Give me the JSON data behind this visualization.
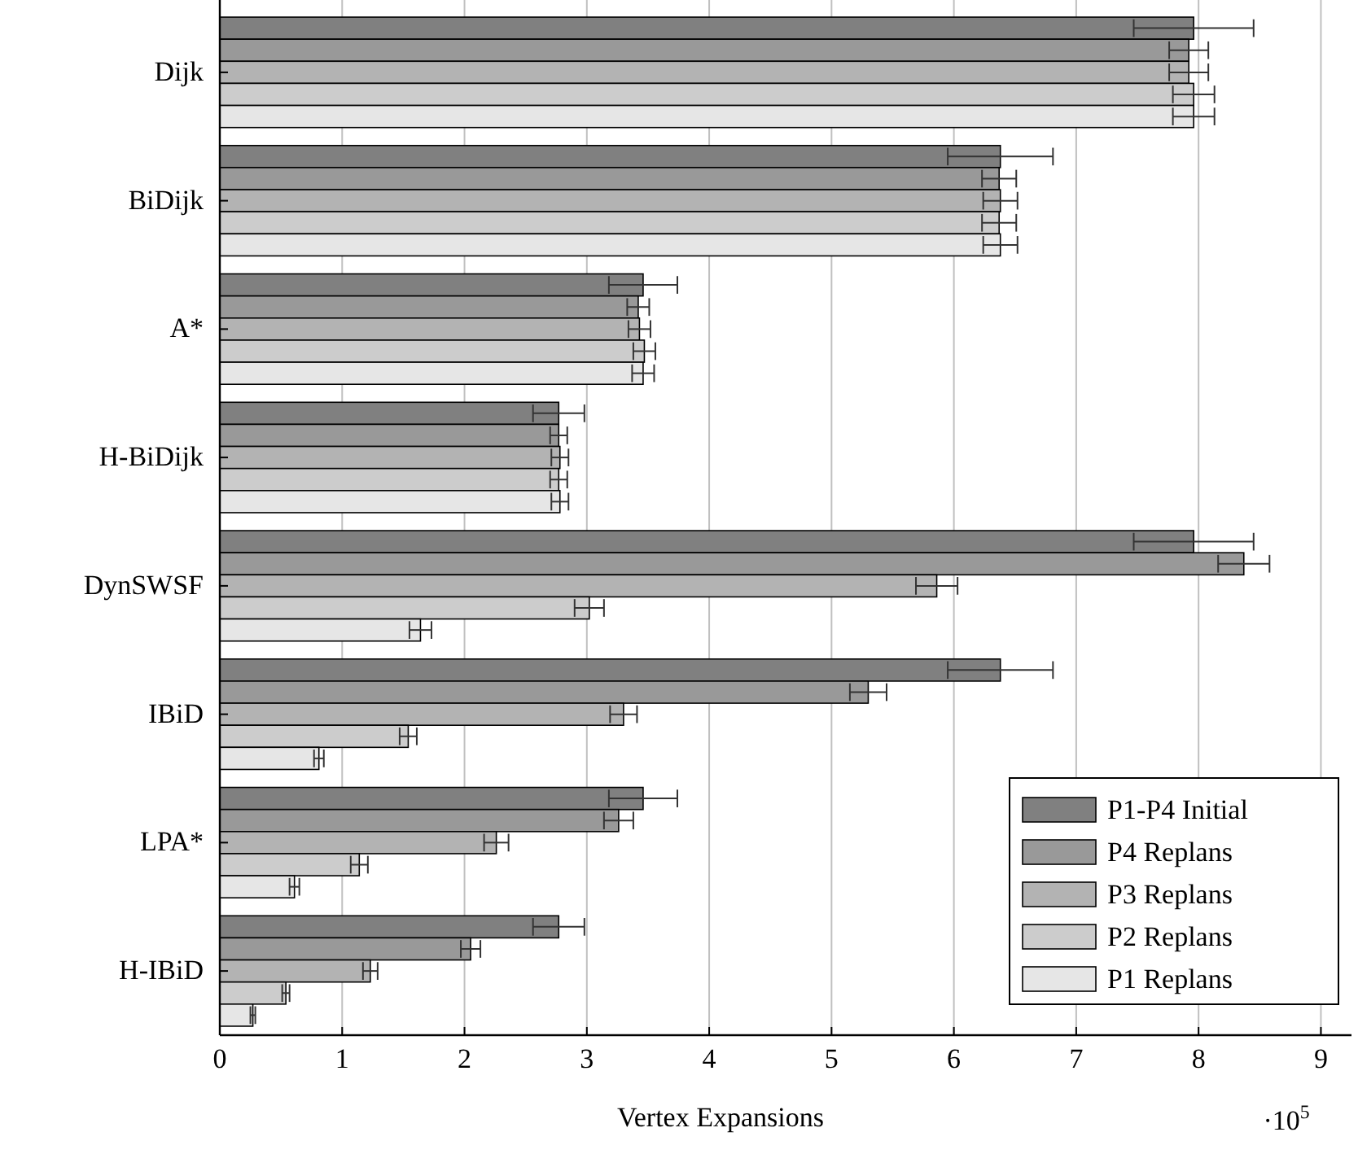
{
  "chart_data": {
    "type": "bar",
    "orientation": "horizontal",
    "xlabel": "Vertex Expansions",
    "annotations": [
      "·10$^{5}$"
    ],
    "categories": [
      "Dijk",
      "BiDijk",
      "A*",
      "H-BiDijk",
      "DynSWSF",
      "IBiD",
      "LPA*",
      "H-IBiD"
    ],
    "xlim": [
      0,
      9.25
    ],
    "xticks": [
      0,
      1,
      2,
      3,
      4,
      5,
      6,
      7,
      8,
      9
    ],
    "grid": "x",
    "legend": "bottom right",
    "series": [
      {
        "name": "P1-P4 Initial",
        "color": "#808080",
        "values": [
          7.96,
          6.38,
          3.46,
          2.77,
          7.96,
          6.38,
          3.46,
          2.77
        ],
        "errors": [
          0.49,
          0.43,
          0.28,
          0.21,
          0.49,
          0.43,
          0.28,
          0.21
        ]
      },
      {
        "name": "P4 Replans",
        "color": "#999999",
        "values": [
          7.92,
          6.37,
          3.42,
          2.77,
          8.37,
          5.3,
          3.26,
          2.05
        ],
        "errors": [
          0.16,
          0.14,
          0.09,
          0.07,
          0.21,
          0.15,
          0.12,
          0.08
        ]
      },
      {
        "name": "P3 Replans",
        "color": "#b3b3b3",
        "values": [
          7.92,
          6.38,
          3.43,
          2.78,
          5.86,
          3.3,
          2.26,
          1.23
        ],
        "errors": [
          0.16,
          0.14,
          0.09,
          0.07,
          0.17,
          0.11,
          0.1,
          0.06
        ]
      },
      {
        "name": "P2 Replans",
        "color": "#cccccc",
        "values": [
          7.96,
          6.37,
          3.47,
          2.77,
          3.02,
          1.54,
          1.14,
          0.54
        ],
        "errors": [
          0.17,
          0.14,
          0.09,
          0.07,
          0.12,
          0.07,
          0.07,
          0.03
        ]
      },
      {
        "name": "P1 Replans",
        "color": "#e6e6e6",
        "values": [
          7.96,
          6.38,
          3.46,
          2.78,
          1.64,
          0.81,
          0.61,
          0.27
        ],
        "errors": [
          0.17,
          0.14,
          0.09,
          0.07,
          0.09,
          0.04,
          0.04,
          0.02
        ]
      }
    ]
  }
}
